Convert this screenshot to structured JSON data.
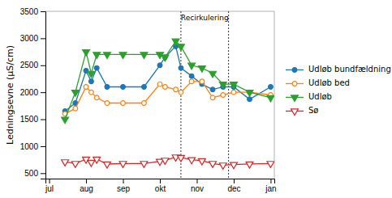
{
  "chart_data": {
    "type": "line",
    "ylabel": "Ledningsevne (µS/cm)",
    "x": [
      0.43,
      0.71,
      1.0,
      1.14,
      1.29,
      1.57,
      2.0,
      2.57,
      3.0,
      3.14,
      3.43,
      3.57,
      3.86,
      4.14,
      4.43,
      4.71,
      5.0,
      5.43,
      6.0
    ],
    "series": [
      {
        "name": "Udløb bundfældning",
        "marker": "circle",
        "values": [
          1650,
          1800,
          2400,
          2200,
          2450,
          2100,
          2100,
          2100,
          2500,
          2650,
          2850,
          2450,
          2300,
          2150,
          2050,
          2100,
          2100,
          1870,
          2100
        ]
      },
      {
        "name": "Udløb bed",
        "marker": "circle-open",
        "values": [
          1600,
          1700,
          2100,
          2000,
          1900,
          1800,
          1800,
          1800,
          2150,
          2100,
          2050,
          2000,
          2200,
          2200,
          1900,
          1950,
          2000,
          2000,
          1950
        ]
      },
      {
        "name": "Udløb",
        "marker": "triangle-down",
        "values": [
          1500,
          2000,
          2750,
          2350,
          2700,
          2700,
          2700,
          2700,
          2700,
          2650,
          2950,
          2850,
          2500,
          2450,
          2350,
          2150,
          2150,
          2000,
          1900
        ]
      },
      {
        "name": "Sø",
        "marker": "triangle-down-open",
        "values": [
          710,
          680,
          760,
          700,
          760,
          670,
          680,
          680,
          720,
          740,
          800,
          790,
          750,
          730,
          680,
          650,
          660,
          670,
          680
        ]
      }
    ],
    "xlim": [
      -0.1,
      6.1
    ],
    "xticks": [
      {
        "value": 0,
        "label": "jul"
      },
      {
        "value": 1,
        "label": "aug"
      },
      {
        "value": 2,
        "label": "sep"
      },
      {
        "value": 3,
        "label": "okt"
      },
      {
        "value": 4,
        "label": "nov"
      },
      {
        "value": 5,
        "label": "dec"
      },
      {
        "value": 6,
        "label": "jan"
      }
    ],
    "ylim": [
      400,
      3500
    ],
    "yticks": [
      500,
      1000,
      1500,
      2000,
      2500,
      3000,
      3500
    ],
    "annotations": [
      {
        "text": "Recirkulering",
        "x_start": 3.57,
        "x_end": 4.86
      }
    ],
    "grid": false,
    "legend": "right"
  }
}
